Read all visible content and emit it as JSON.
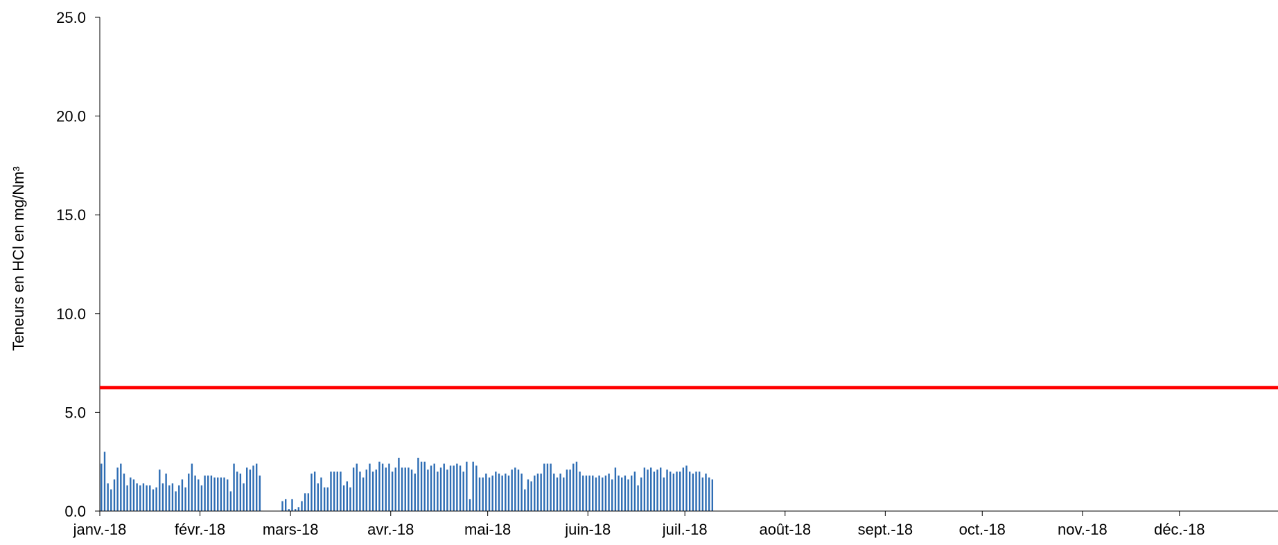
{
  "chart_data": {
    "type": "bar",
    "title": "",
    "ylabel": "Teneurs en HCl en mg/Nm³",
    "xlabel": "",
    "ylim": [
      0,
      25
    ],
    "yticks": [
      "0.0",
      "5.0",
      "10.0",
      "15.0",
      "20.0",
      "25.0"
    ],
    "x_range": [
      "2018-01-01",
      "2018-12-31"
    ],
    "month_labels": [
      "janv.-18",
      "févr.-18",
      "mars-18",
      "avr.-18",
      "mai-18",
      "juin-18",
      "juil.-18",
      "août-18",
      "sept.-18",
      "oct.-18",
      "nov.-18",
      "déc.-18"
    ],
    "start_date": "2018-01-01",
    "bar_color": "#2e6db4",
    "daily_values": [
      2.4,
      3.0,
      1.4,
      1.1,
      1.6,
      2.2,
      2.4,
      1.9,
      1.3,
      1.7,
      1.6,
      1.4,
      1.3,
      1.4,
      1.3,
      1.3,
      1.1,
      1.2,
      2.1,
      1.4,
      1.9,
      1.3,
      1.4,
      1.0,
      1.3,
      1.6,
      1.2,
      1.9,
      2.4,
      1.8,
      1.6,
      1.3,
      1.8,
      1.8,
      1.8,
      1.7,
      1.7,
      1.7,
      1.7,
      1.6,
      1.0,
      2.4,
      2.0,
      1.9,
      1.4,
      2.2,
      2.1,
      2.3,
      2.4,
      1.8,
      null,
      null,
      null,
      null,
      null,
      null,
      0.5,
      0.6,
      0.1,
      0.6,
      0.1,
      0.2,
      0.5,
      0.9,
      0.9,
      1.9,
      2.0,
      1.4,
      1.7,
      1.2,
      1.2,
      2.0,
      2.0,
      2.0,
      2.0,
      1.3,
      1.5,
      1.2,
      2.2,
      2.4,
      2.0,
      1.7,
      2.1,
      2.4,
      2.0,
      2.1,
      2.5,
      2.4,
      2.2,
      2.4,
      2.0,
      2.2,
      2.7,
      2.2,
      2.2,
      2.2,
      2.1,
      1.9,
      2.7,
      2.5,
      2.5,
      2.1,
      2.3,
      2.4,
      2.0,
      2.2,
      2.4,
      2.1,
      2.3,
      2.3,
      2.4,
      2.3,
      2.0,
      2.5,
      0.6,
      2.5,
      2.3,
      1.7,
      1.7,
      1.9,
      1.7,
      1.8,
      2.0,
      1.9,
      1.8,
      1.9,
      1.8,
      2.1,
      2.2,
      2.1,
      1.9,
      1.1,
      1.6,
      1.5,
      1.8,
      1.9,
      1.9,
      2.4,
      2.4,
      2.4,
      1.9,
      1.7,
      1.9,
      1.7,
      2.1,
      2.1,
      2.4,
      2.5,
      2.0,
      1.8,
      1.8,
      1.8,
      1.8,
      1.7,
      1.8,
      1.7,
      1.8,
      1.9,
      1.6,
      2.2,
      1.8,
      1.7,
      1.8,
      1.6,
      1.8,
      2.0,
      1.3,
      1.7,
      2.2,
      2.1,
      2.2,
      2.0,
      2.1,
      2.2,
      1.7,
      2.1,
      2.0,
      1.9,
      2.0,
      2.0,
      2.2,
      2.3,
      2.0,
      1.9,
      2.0,
      2.0,
      1.7,
      1.9,
      1.7,
      1.6
    ],
    "reference_line": {
      "value": 6.25,
      "color": "#ff0000"
    }
  }
}
